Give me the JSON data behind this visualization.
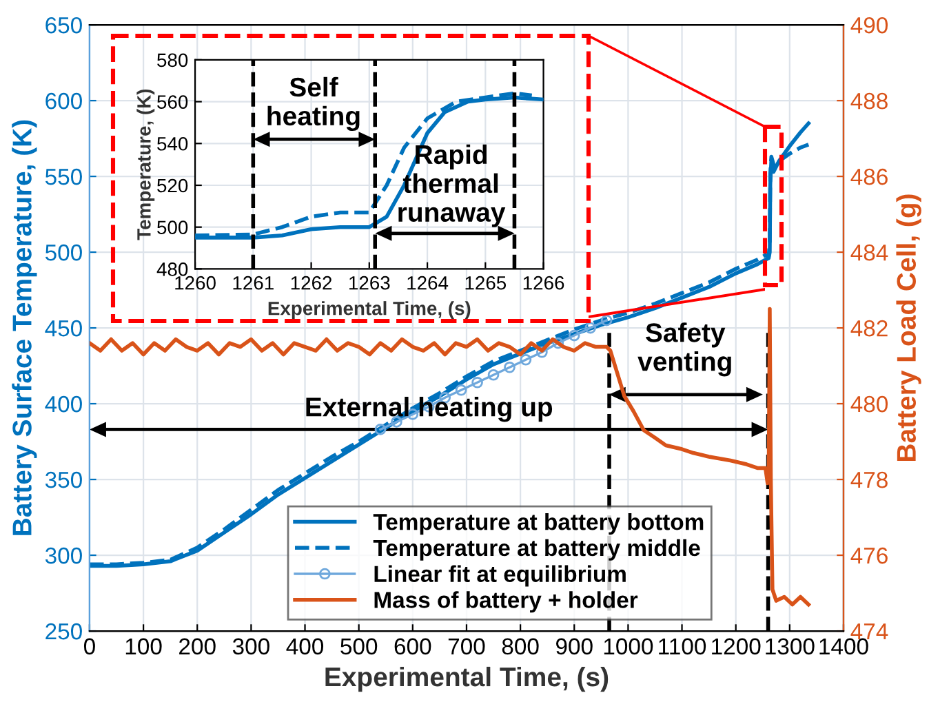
{
  "chart_data": [
    {
      "type": "line",
      "xlabel": "Experimental Time, (s)",
      "ylabel": "Battery Surface Temperature, (K)",
      "y2label": "Battery Load Cell, (g)",
      "xlim": [
        0,
        1400
      ],
      "xticks": [
        0,
        100,
        200,
        300,
        400,
        500,
        600,
        700,
        800,
        900,
        1000,
        1100,
        1200,
        1300,
        1400
      ],
      "ylim": [
        250,
        650
      ],
      "yticks": [
        250,
        300,
        350,
        400,
        450,
        500,
        550,
        600,
        650
      ],
      "y2lim": [
        474,
        490
      ],
      "y2ticks": [
        474,
        476,
        478,
        480,
        482,
        484,
        486,
        488,
        490
      ],
      "grid": true,
      "legend": "bottom right",
      "series": [
        {
          "name": "Temperature at battery bottom",
          "color": "#0072bd",
          "line_style": "solid",
          "x": [
            0,
            50,
            100,
            150,
            200,
            250,
            300,
            350,
            400,
            450,
            500,
            550,
            600,
            650,
            700,
            750,
            800,
            850,
            900,
            950,
            1000,
            1050,
            1100,
            1150,
            1200,
            1240,
            1255,
            1261,
            1263,
            1264,
            1266,
            1268,
            1270,
            1280,
            1300,
            1320,
            1335
          ],
          "values": [
            293,
            293,
            294,
            296,
            303,
            315,
            327,
            340,
            351,
            362,
            373,
            384,
            395,
            405,
            416,
            426,
            433,
            440,
            446,
            452,
            457,
            463,
            470,
            477,
            486,
            492,
            495,
            496,
            500,
            545,
            561,
            556,
            553,
            560,
            570,
            579,
            585
          ]
        },
        {
          "name": "Temperature at battery middle",
          "color": "#0072bd",
          "line_style": "dashed",
          "x": [
            0,
            50,
            100,
            150,
            200,
            250,
            300,
            350,
            400,
            450,
            500,
            550,
            600,
            650,
            700,
            750,
            800,
            850,
            900,
            950,
            1000,
            1050,
            1100,
            1150,
            1200,
            1240,
            1255,
            1261,
            1263,
            1264,
            1266,
            1270,
            1280,
            1300,
            1320,
            1335
          ],
          "values": [
            294,
            294,
            295,
            297,
            305,
            317,
            330,
            343,
            354,
            365,
            375,
            386,
            397,
            407,
            418,
            428,
            435,
            442,
            449,
            455,
            460,
            466,
            473,
            480,
            489,
            495,
            498,
            497,
            507,
            552,
            563,
            558,
            560,
            565,
            569,
            571
          ]
        },
        {
          "name": "Linear fit at equilibrium",
          "color": "#6fa8dc",
          "line_style": "solid",
          "marker": "circle",
          "x": [
            540,
            570,
            600,
            630,
            660,
            690,
            720,
            750,
            780,
            810,
            840,
            870,
            900,
            930,
            960
          ],
          "values": [
            383,
            388,
            393,
            398,
            404,
            409,
            414,
            419,
            424,
            429,
            434,
            440,
            445,
            450,
            455
          ]
        },
        {
          "name": "Mass of battery + holder",
          "color": "#d95319",
          "line_style": "solid",
          "axis": "y2",
          "x": [
            0,
            20,
            40,
            60,
            80,
            100,
            120,
            140,
            160,
            180,
            200,
            220,
            240,
            260,
            280,
            300,
            320,
            340,
            360,
            380,
            400,
            420,
            440,
            460,
            480,
            500,
            520,
            540,
            560,
            580,
            600,
            620,
            640,
            660,
            680,
            700,
            720,
            740,
            760,
            780,
            800,
            820,
            840,
            860,
            880,
            900,
            920,
            940,
            960,
            967,
            980,
            993,
            1010,
            1029,
            1050,
            1070,
            1100,
            1121,
            1150,
            1190,
            1220,
            1241,
            1255,
            1259,
            1261,
            1263,
            1265,
            1268,
            1275,
            1290,
            1305,
            1320,
            1335
          ],
          "values": [
            481.6,
            481.4,
            481.7,
            481.4,
            481.6,
            481.3,
            481.6,
            481.4,
            481.7,
            481.5,
            481.4,
            481.6,
            481.3,
            481.6,
            481.5,
            481.7,
            481.4,
            481.6,
            481.3,
            481.6,
            481.5,
            481.4,
            481.7,
            481.4,
            481.6,
            481.5,
            481.3,
            481.6,
            481.4,
            481.7,
            481.5,
            481.4,
            481.6,
            481.3,
            481.6,
            481.5,
            481.7,
            481.4,
            481.6,
            481.5,
            481.3,
            481.6,
            481.4,
            481.7,
            481.5,
            481.4,
            481.6,
            481.5,
            481.5,
            481.4,
            480.8,
            480.2,
            479.8,
            479.3,
            479.1,
            478.9,
            478.8,
            478.7,
            478.6,
            478.5,
            478.4,
            478.3,
            478.3,
            477.9,
            478.0,
            482.5,
            478.0,
            475.1,
            474.8,
            474.9,
            474.7,
            474.9,
            474.7
          ]
        }
      ],
      "ref_lines": [
        {
          "axis": "x",
          "value": 965,
          "color": "#000000",
          "line_style": "dashed"
        },
        {
          "axis": "x",
          "value": 1260,
          "color": "#000000",
          "line_style": "dashed"
        }
      ],
      "annotations": [
        "External heating up",
        "Safety\nventing"
      ]
    },
    {
      "type": "line",
      "xlabel": "Experimental Time, (s)",
      "ylabel": "Temperature, (K)",
      "xlim": [
        1260,
        1266
      ],
      "xticks": [
        1260,
        1261,
        1262,
        1263,
        1264,
        1265,
        1266
      ],
      "ylim": [
        480,
        580
      ],
      "yticks": [
        480,
        500,
        520,
        540,
        560,
        580
      ],
      "grid": true,
      "series": [
        {
          "color": "#0072bd",
          "line_style": "solid",
          "x": [
            1260,
            1261,
            1261.5,
            1262,
            1262.5,
            1263,
            1263.3,
            1263.6,
            1264,
            1264.3,
            1264.7,
            1265,
            1265.5,
            1266
          ],
          "values": [
            495,
            495,
            496,
            499,
            500,
            500,
            505,
            520,
            545,
            555,
            560,
            561,
            562,
            561
          ]
        },
        {
          "color": "#0072bd",
          "line_style": "dashed",
          "x": [
            1260,
            1261,
            1261.5,
            1262,
            1262.5,
            1263,
            1263.3,
            1263.6,
            1264,
            1264.5,
            1265,
            1265.5,
            1265.8
          ],
          "values": [
            496,
            496.5,
            500,
            505,
            507,
            507,
            520,
            538,
            552,
            560,
            562,
            564,
            563
          ]
        }
      ],
      "ref_lines": [
        {
          "axis": "x",
          "value": 1261,
          "color": "#000000",
          "line_style": "dashed"
        },
        {
          "axis": "x",
          "value": 1263.1,
          "color": "#000000",
          "line_style": "dashed"
        },
        {
          "axis": "x",
          "value": 1265.5,
          "color": "#000000",
          "line_style": "dashed"
        }
      ],
      "annotations": [
        "Self\nheating",
        "Rapid\nthermal\nrunaway"
      ]
    }
  ]
}
